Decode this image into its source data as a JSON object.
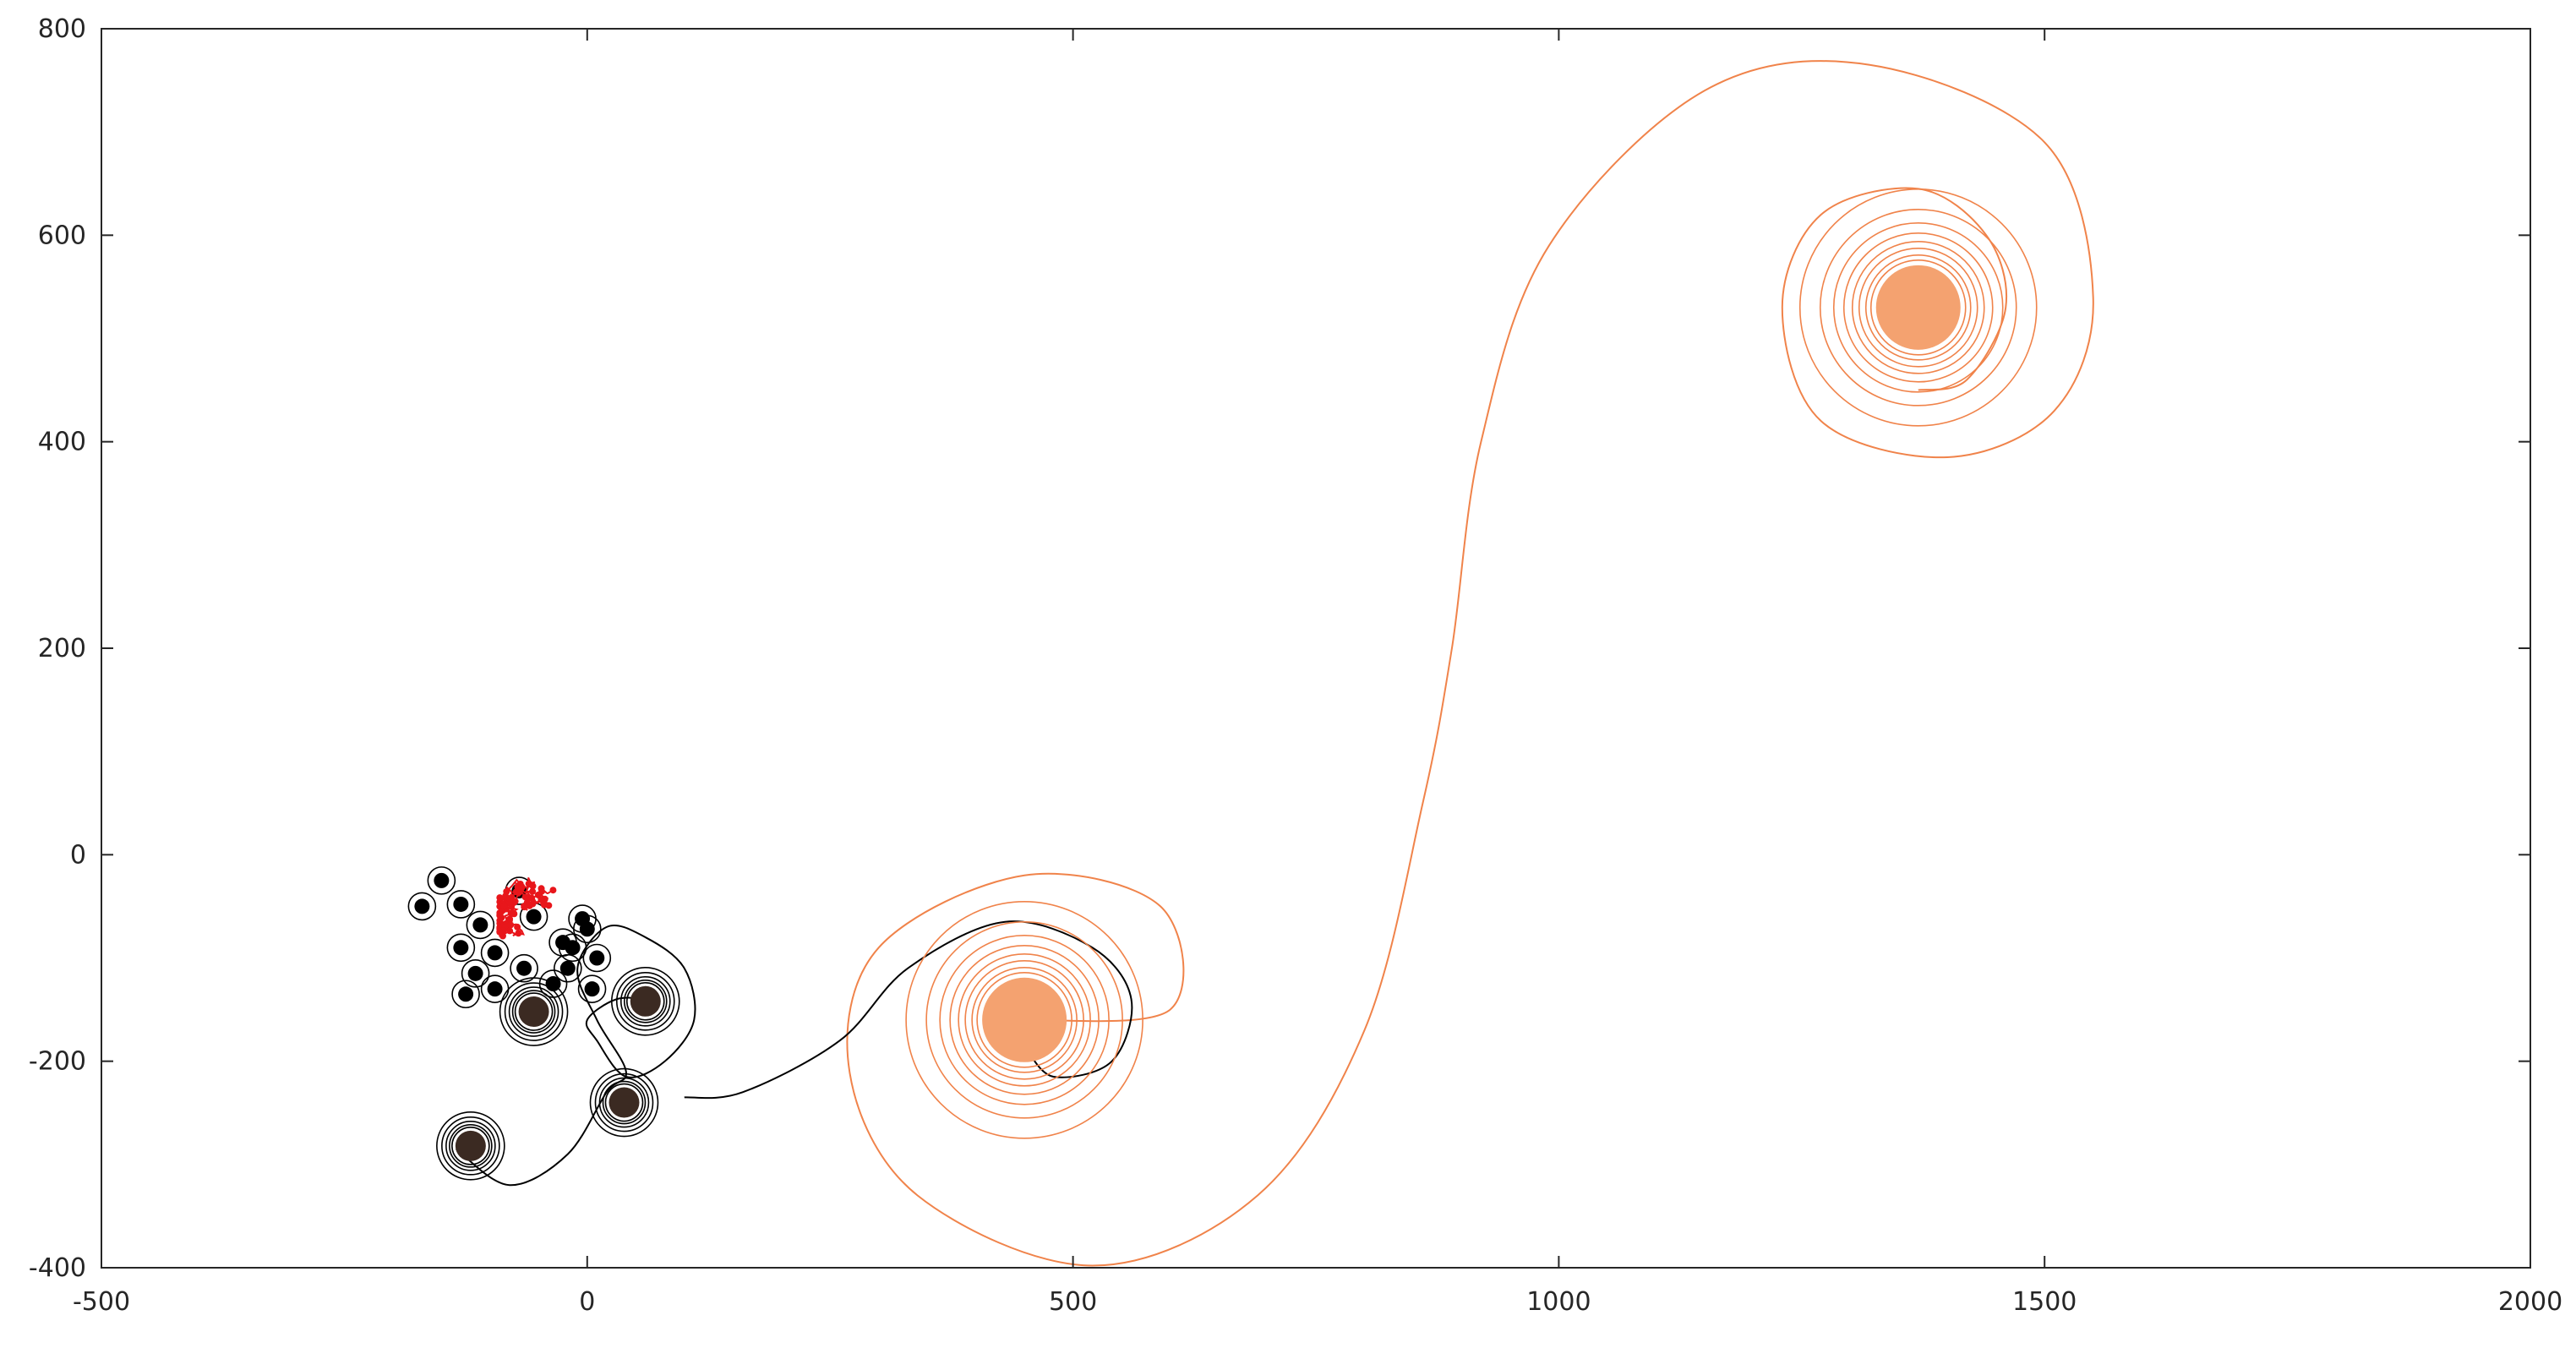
{
  "chart_data": {
    "type": "line",
    "title": "",
    "xlabel": "",
    "ylabel": "",
    "xlim": [
      -500,
      2000
    ],
    "ylim": [
      -400,
      800
    ],
    "xticks": [
      -500,
      0,
      500,
      1000,
      1500,
      2000
    ],
    "yticks": [
      -400,
      -200,
      0,
      200,
      400,
      600,
      800
    ],
    "grid": false,
    "legend": "none",
    "colors": {
      "black_trajectories": "#000000",
      "dark_vortex": "#3b2a22",
      "orange_trajectory": "#f0834a",
      "orange_fill": "#f4a270",
      "red_cluster": "#e8161b"
    },
    "series": [
      {
        "color": "#f0834a",
        "points": [
          [
            450,
            -160
          ],
          [
            600,
            -150
          ],
          [
            590,
            -50
          ],
          [
            450,
            -20
          ],
          [
            300,
            -90
          ],
          [
            270,
            -210
          ],
          [
            340,
            -330
          ],
          [
            520,
            -398
          ],
          [
            690,
            -330
          ],
          [
            800,
            -170
          ],
          [
            860,
            50
          ],
          [
            890,
            200
          ],
          [
            920,
            400
          ],
          [
            990,
            590
          ],
          [
            1150,
            740
          ],
          [
            1320,
            765
          ],
          [
            1500,
            690
          ],
          [
            1550,
            540
          ],
          [
            1510,
            430
          ],
          [
            1400,
            385
          ],
          [
            1270,
            420
          ],
          [
            1230,
            530
          ],
          [
            1270,
            620
          ],
          [
            1370,
            645
          ],
          [
            1440,
            600
          ],
          [
            1460,
            530
          ],
          [
            1420,
            460
          ],
          [
            1370,
            450
          ]
        ]
      },
      {
        "color": "#000000",
        "points": [
          [
            100,
            -235
          ],
          [
            160,
            -230
          ],
          [
            260,
            -180
          ],
          [
            330,
            -110
          ],
          [
            430,
            -65
          ],
          [
            520,
            -90
          ],
          [
            560,
            -140
          ],
          [
            540,
            -200
          ],
          [
            480,
            -215
          ],
          [
            450,
            -185
          ]
        ]
      },
      {
        "color": "#000000",
        "points": [
          [
            -135,
            -285
          ],
          [
            -80,
            -320
          ],
          [
            -20,
            -290
          ],
          [
            20,
            -230
          ],
          [
            40,
            -210
          ],
          [
            10,
            -160
          ],
          [
            -10,
            -110
          ],
          [
            20,
            -70
          ],
          [
            60,
            -80
          ],
          [
            100,
            -110
          ],
          [
            110,
            -160
          ],
          [
            80,
            -200
          ],
          [
            40,
            -215
          ],
          [
            10,
            -180
          ],
          [
            0,
            -160
          ],
          [
            30,
            -140
          ],
          [
            65,
            -140
          ]
        ]
      }
    ],
    "vortices": [
      {
        "x": 1370,
        "y": 530,
        "color": "#f4a270"
      },
      {
        "x": 450,
        "y": -160,
        "color": "#f4a270"
      },
      {
        "x": 60,
        "y": -142,
        "color": "#3b2a22"
      },
      {
        "x": -120,
        "y": -282,
        "color": "#3b2a22"
      },
      {
        "x": 38,
        "y": -240,
        "color": "#3b2a22"
      },
      {
        "x": -55,
        "y": -152,
        "color": "#3b2a22"
      }
    ],
    "small_vortices": [
      {
        "x": -150,
        "y": -25
      },
      {
        "x": -170,
        "y": -50
      },
      {
        "x": -130,
        "y": -48
      },
      {
        "x": -110,
        "y": -68
      },
      {
        "x": -130,
        "y": -90
      },
      {
        "x": -95,
        "y": -95
      },
      {
        "x": -115,
        "y": -115
      },
      {
        "x": -125,
        "y": -135
      },
      {
        "x": -95,
        "y": -130
      },
      {
        "x": -65,
        "y": -110
      },
      {
        "x": -70,
        "y": -35
      },
      {
        "x": -55,
        "y": -60
      },
      {
        "x": -25,
        "y": -85
      },
      {
        "x": -20,
        "y": -110
      },
      {
        "x": 5,
        "y": -130
      },
      {
        "x": 0,
        "y": -72
      },
      {
        "x": -15,
        "y": -90
      },
      {
        "x": 10,
        "y": -100
      },
      {
        "x": -35,
        "y": -125
      },
      {
        "x": -5,
        "y": -62
      }
    ],
    "red_cluster": {
      "x_range": [
        -90,
        20
      ],
      "y_range": [
        -80,
        10
      ],
      "color": "#e8161b"
    }
  }
}
